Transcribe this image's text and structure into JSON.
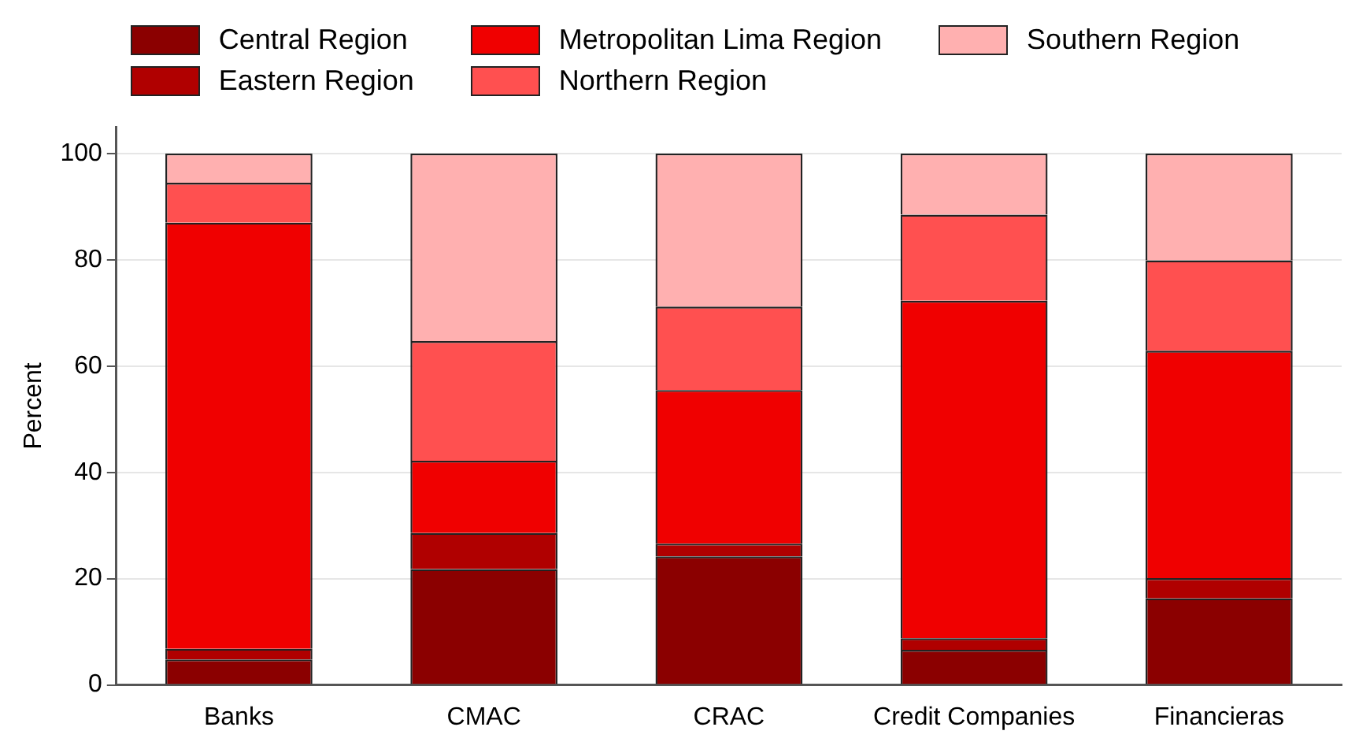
{
  "chart_data": {
    "type": "bar",
    "stacked": true,
    "ylabel": "Percent",
    "categories": [
      "Banks",
      "CMAC",
      "CRAC",
      "Credit Companies",
      "Financieras"
    ],
    "series": [
      {
        "name": "Central Region",
        "color": "#8b0000",
        "values": [
          4.8,
          21.8,
          24.2,
          6.6,
          16.3
        ]
      },
      {
        "name": "Eastern Region",
        "color": "#b00000",
        "values": [
          2.0,
          6.8,
          2.4,
          2.2,
          3.8
        ]
      },
      {
        "name": "Metropolitan Lima Region",
        "color": "#f00000",
        "values": [
          80.2,
          13.6,
          28.9,
          63.5,
          42.8
        ]
      },
      {
        "name": "Northern Region",
        "color": "#ff5050",
        "values": [
          7.5,
          22.5,
          15.7,
          16.2,
          17.0
        ]
      },
      {
        "name": "Southern Region",
        "color": "#ffb0b0",
        "values": [
          5.5,
          35.3,
          28.8,
          11.5,
          20.1
        ]
      }
    ],
    "ylim": [
      0,
      105
    ],
    "yticks": [
      0,
      20,
      40,
      60,
      80,
      100
    ],
    "grid": "y",
    "legend": "top"
  }
}
